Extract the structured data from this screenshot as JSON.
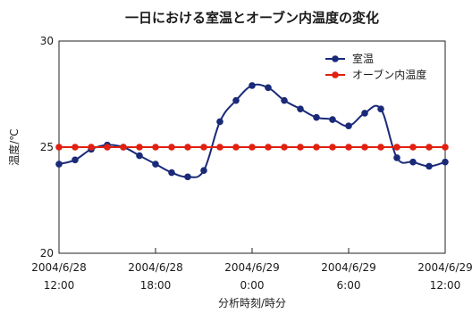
{
  "chart_data": {
    "type": "line",
    "title": "一日における室温とオーブン内温度の変化",
    "xlabel": "分析時刻/時分",
    "ylabel": "温度/℃",
    "ylim": [
      20,
      30
    ],
    "yticks": [
      "20",
      "25",
      "30"
    ],
    "xlim": [
      0,
      24
    ],
    "xticks": [
      {
        "x": 0,
        "line1": "2004/6/28",
        "line2": "12:00"
      },
      {
        "x": 6,
        "line1": "2004/6/28",
        "line2": "18:00"
      },
      {
        "x": 12,
        "line1": "2004/6/29",
        "line2": "0:00"
      },
      {
        "x": 18,
        "line1": "2004/6/29",
        "line2": "6:00"
      },
      {
        "x": 24,
        "line1": "2004/6/29",
        "line2": "12:00"
      }
    ],
    "grid": false,
    "legend_position": "top-right",
    "series": [
      {
        "name": "室温",
        "color": "#1a2a78",
        "marker": "circle",
        "smooth": true,
        "x": [
          0,
          1,
          2,
          3,
          4,
          5,
          6,
          7,
          8,
          9,
          10,
          11,
          12,
          13,
          14,
          15,
          16,
          17,
          18,
          19,
          20,
          21,
          22,
          23,
          24
        ],
        "values": [
          24.2,
          24.4,
          24.9,
          25.1,
          25.0,
          24.6,
          24.2,
          23.8,
          23.6,
          23.9,
          26.2,
          27.2,
          27.9,
          27.8,
          27.2,
          26.8,
          26.4,
          26.3,
          26.0,
          26.6,
          26.8,
          24.5,
          24.3,
          24.1,
          24.3
        ]
      },
      {
        "name": "オーブン内温度",
        "color": "#e02010",
        "marker": "circle",
        "smooth": false,
        "x": [
          0,
          1,
          2,
          3,
          4,
          5,
          6,
          7,
          8,
          9,
          10,
          11,
          12,
          13,
          14,
          15,
          16,
          17,
          18,
          19,
          20,
          21,
          22,
          23,
          24
        ],
        "values": [
          25,
          25,
          25,
          25,
          25,
          25,
          25,
          25,
          25,
          25,
          25,
          25,
          25,
          25,
          25,
          25,
          25,
          25,
          25,
          25,
          25,
          25,
          25,
          25,
          25
        ]
      }
    ]
  }
}
